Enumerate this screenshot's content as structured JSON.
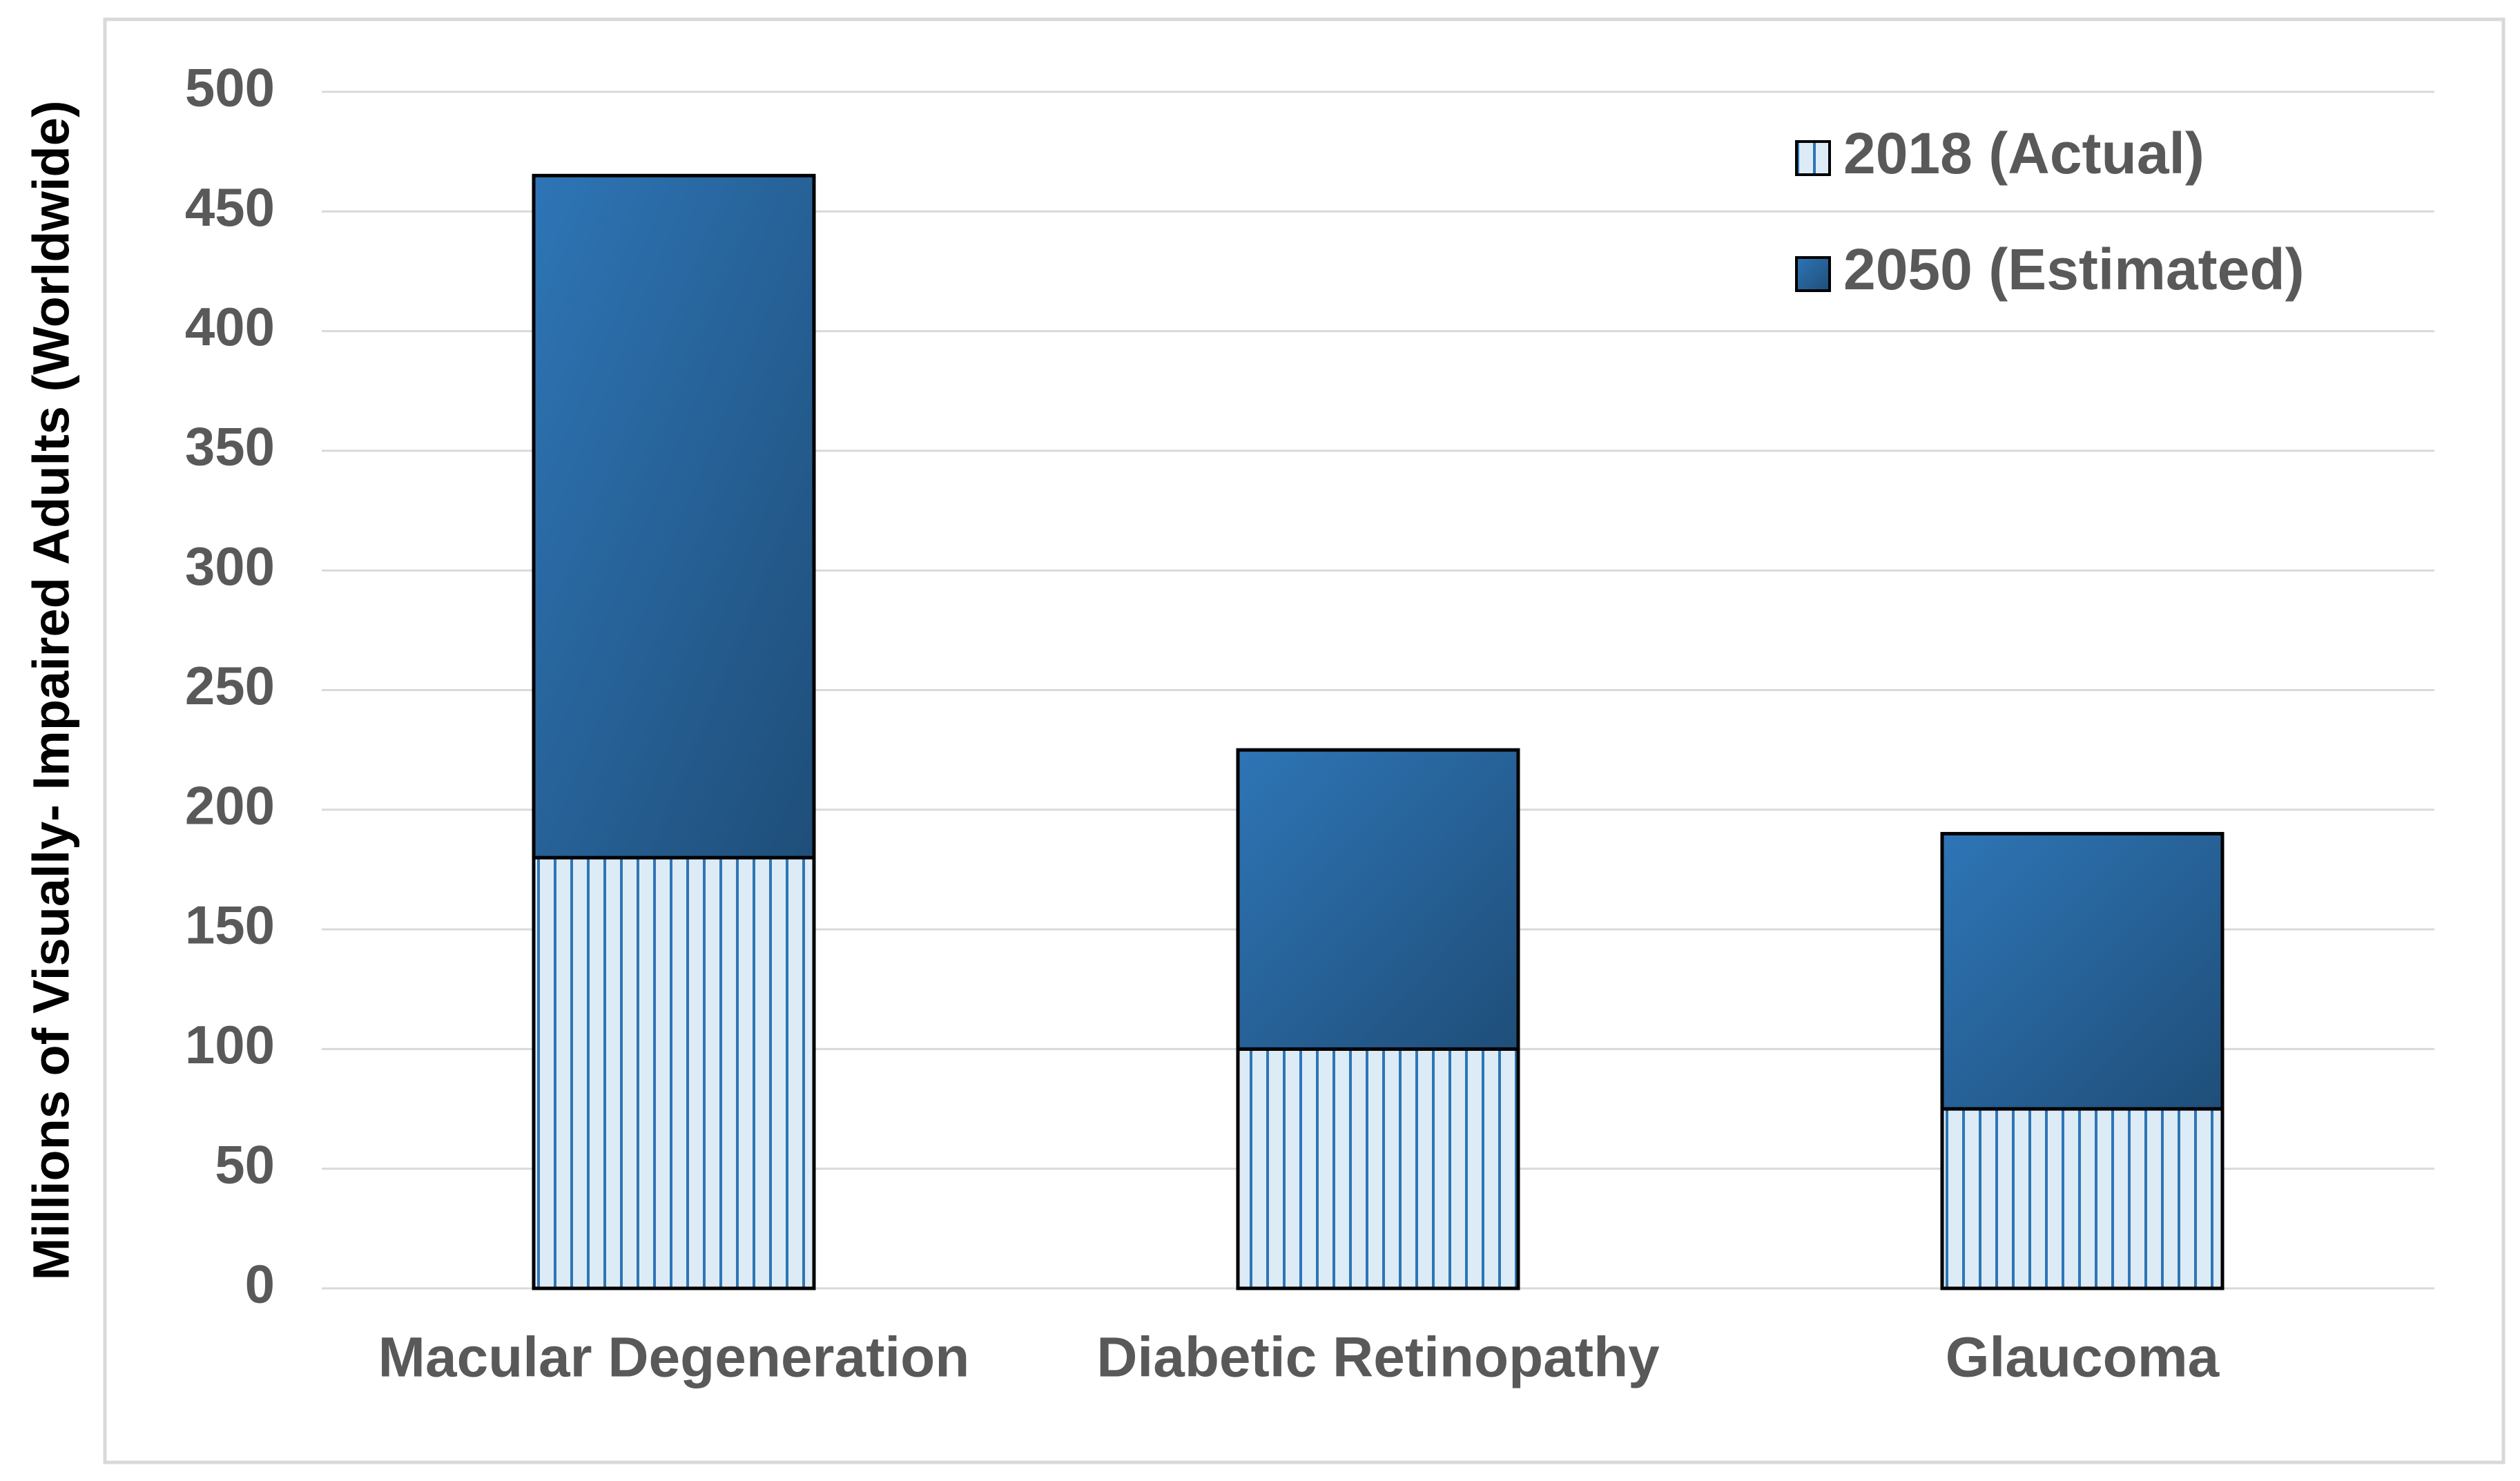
{
  "chart_data": {
    "type": "stacked_bar",
    "y_label": "Millions of Visually- Impaired Adults (Worldwide)",
    "categories": [
      "Macular Degeneration",
      "Diabetic Retinopathy",
      "Glaucoma"
    ],
    "series": [
      {
        "name": "2018 (Actual)",
        "color": "#ddebf7",
        "values": [
          180,
          100,
          75
        ]
      },
      {
        "name": "2050 (Estimated)",
        "color": "#2e75b6",
        "values": [
          285,
          125,
          115
        ]
      }
    ],
    "ylim": [
      0,
      500
    ],
    "yticks": [
      0,
      50,
      100,
      150,
      200,
      250,
      300,
      350,
      400,
      450,
      500
    ],
    "grid": true
  }
}
